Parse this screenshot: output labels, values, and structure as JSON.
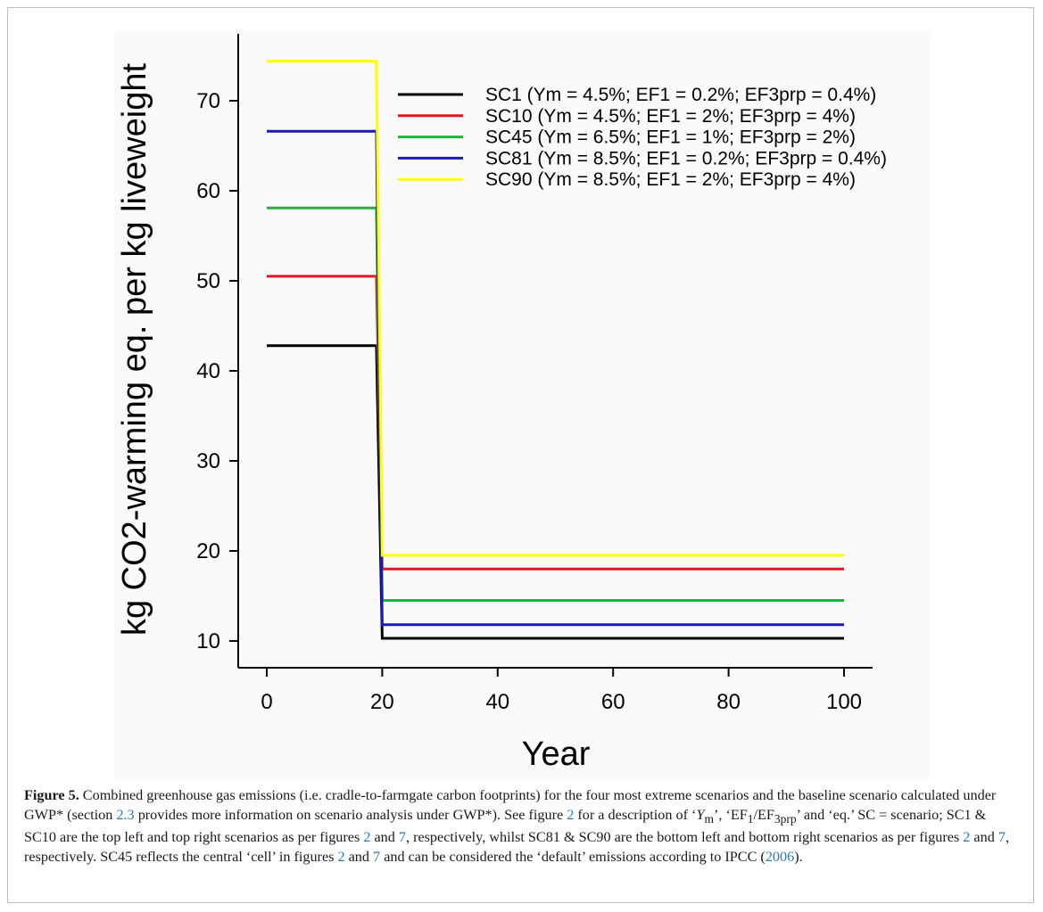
{
  "chart_data": {
    "type": "line",
    "xlabel": "Year",
    "ylabel": "kg CO2-warming eq. per kg liveweight",
    "xlim": [
      0,
      100
    ],
    "ylim": [
      9,
      76
    ],
    "xticks": [
      0,
      20,
      40,
      60,
      80,
      100
    ],
    "yticks": [
      10,
      20,
      30,
      40,
      50,
      60,
      70
    ],
    "grid": false,
    "legend_position": "top-right",
    "series": [
      {
        "name": "SC1 (Ym = 4.5%; EF1 = 0.2%; EF3prp = 0.4%)",
        "color": "#000000",
        "x": [
          0,
          19,
          20,
          100
        ],
        "y": [
          42.8,
          42.8,
          10.3,
          10.3
        ]
      },
      {
        "name": "SC10 (Ym = 4.5%; EF1 = 2%; EF3prp = 4%)",
        "color": "#e3171f",
        "x": [
          0,
          19,
          20,
          100
        ],
        "y": [
          50.5,
          50.5,
          18.0,
          18.0
        ]
      },
      {
        "name": "SC45 (Ym = 6.5%; EF1 = 1%; EF3prp = 2%)",
        "color": "#1cb53a",
        "x": [
          0,
          19,
          20,
          100
        ],
        "y": [
          58.1,
          58.1,
          14.5,
          14.5
        ]
      },
      {
        "name": "SC81 (Ym = 8.5%; EF1 = 0.2%; EF3prp = 0.4%)",
        "color": "#1a1ab8",
        "x": [
          0,
          19,
          20,
          100
        ],
        "y": [
          66.6,
          66.6,
          11.8,
          11.8
        ]
      },
      {
        "name": "SC90 (Ym = 8.5%; EF1 = 2%; EF3prp = 4%)",
        "color": "#ffff00",
        "x": [
          0,
          19,
          20,
          100
        ],
        "y": [
          74.4,
          74.4,
          19.5,
          19.5
        ]
      }
    ]
  },
  "caption": {
    "label": "Figure 5.",
    "p1": " Combined greenhouse gas emissions (i.e. cradle-to-farmgate carbon footprints) for the four most extreme scenarios and the baseline scenario calculated under GWP* (section ",
    "ref_section": "2.3",
    "p2": " provides more information on scenario analysis under GWP*). See figure ",
    "ref_fig_a": "2",
    "p3": " for a description of ‘",
    "ym_main": "Y",
    "ym_sub": "m",
    "p4": "’, ‘EF",
    "ef_sub1": "1",
    "p5": "/EF",
    "ef_sub2": "3prp",
    "p6": "’ and ‘eq.’ SC = scenario; SC1 & SC10 are the top left and top right scenarios as per figures ",
    "ref_fig_b": "2",
    "p7": " and ",
    "ref_fig_c": "7",
    "p8": ", respectively, whilst SC81 & SC90 are the bottom left and bottom right scenarios as per figures ",
    "ref_fig_d": "2",
    "p9": " and ",
    "ref_fig_e": "7",
    "p10": ", respectively. SC45 reflects the central ‘cell’ in figures ",
    "ref_fig_f": "2",
    "p11": " and ",
    "ref_fig_g": "7",
    "p12": " and can be considered the ‘default’ emissions according to IPCC (",
    "ref_year": "2006",
    "p13": ")."
  }
}
